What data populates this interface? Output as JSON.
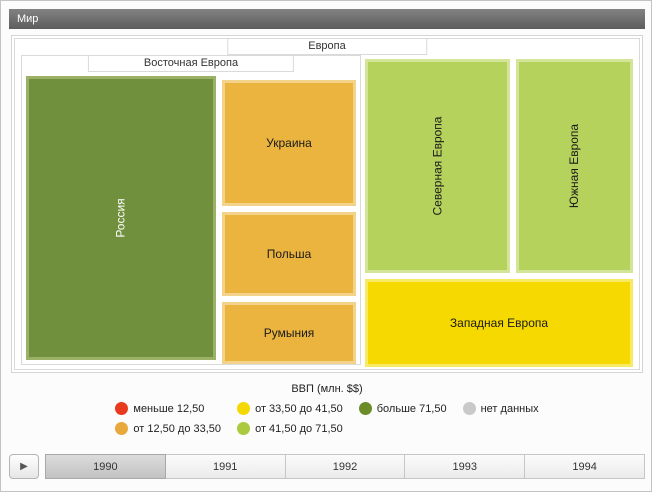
{
  "window": {
    "title": "Мир"
  },
  "treemap": {
    "root": {
      "label": "Европа"
    },
    "eastern_group": {
      "label": "Восточная Европа"
    },
    "cells": {
      "russia": {
        "label": "Россия",
        "color": "#70903e",
        "border_color": "#9cb168",
        "text_color": "#ffffff"
      },
      "ukraine": {
        "label": "Украина",
        "color": "#eab43f",
        "border_color": "#f3d289",
        "text_color": "#1a1a1a"
      },
      "poland": {
        "label": "Польша",
        "color": "#eab43f",
        "border_color": "#f3d289",
        "text_color": "#1a1a1a"
      },
      "romania": {
        "label": "Румыния",
        "color": "#eab43f",
        "border_color": "#f3d289",
        "text_color": "#1a1a1a"
      },
      "northern": {
        "label": "Северная Европа",
        "color": "#b5d35c",
        "border_color": "#d4e59a",
        "text_color": "#1a1a1a"
      },
      "southern": {
        "label": "Южная Европа",
        "color": "#b5d35c",
        "border_color": "#d4e59a",
        "text_color": "#1a1a1a"
      },
      "western": {
        "label": "Западная Европа",
        "color": "#f5d900",
        "border_color": "#f9ea66",
        "text_color": "#1a1a1a"
      }
    }
  },
  "legend": {
    "title": "ВВП (млн. $$)",
    "items": [
      {
        "label": "меньше 12,50",
        "color": "#e83a1e"
      },
      {
        "label": "от 12,50 до 33,50",
        "color": "#e9a83c"
      },
      {
        "label": "от 33,50 до 41,50",
        "color": "#f4d803"
      },
      {
        "label": "от 41,50 до 71,50",
        "color": "#abca40"
      },
      {
        "label": "больше 71,50",
        "color": "#6b8c28"
      },
      {
        "label": "нет данных",
        "color": "#c9c9c9"
      }
    ]
  },
  "timeline": {
    "play_label": "▶",
    "years": [
      {
        "label": "1990",
        "selected": true
      },
      {
        "label": "1991",
        "selected": false
      },
      {
        "label": "1992",
        "selected": false
      },
      {
        "label": "1993",
        "selected": false
      },
      {
        "label": "1994",
        "selected": false
      }
    ]
  },
  "chart_data": {
    "type": "treemap",
    "title": "ВВП (млн. $$)",
    "root": "Мир",
    "year": "1990",
    "legend_bins": [
      {
        "label": "меньше 12,50",
        "color": "#e83a1e"
      },
      {
        "label": "от 12,50 до 33,50",
        "color": "#e9a83c"
      },
      {
        "label": "от 33,50 до 41,50",
        "color": "#f4d803"
      },
      {
        "label": "от 41,50 до 71,50",
        "color": "#abca40"
      },
      {
        "label": "больше 71,50",
        "color": "#6b8c28"
      },
      {
        "label": "нет данных",
        "color": "#c9c9c9"
      }
    ],
    "hierarchy": [
      {
        "region": "Европа",
        "children": [
          {
            "region": "Восточная Европа",
            "children": [
              {
                "name": "Россия",
                "gdp_bin": "больше 71,50"
              },
              {
                "name": "Украина",
                "gdp_bin": "от 12,50 до 33,50"
              },
              {
                "name": "Польша",
                "gdp_bin": "от 12,50 до 33,50"
              },
              {
                "name": "Румыния",
                "gdp_bin": "от 12,50 до 33,50"
              }
            ]
          },
          {
            "name": "Северная Европа",
            "gdp_bin": "от 41,50 до 71,50"
          },
          {
            "name": "Южная Европа",
            "gdp_bin": "от 41,50 до 71,50"
          },
          {
            "name": "Западная Европа",
            "gdp_bin": "от 33,50 до 41,50"
          }
        ]
      }
    ]
  }
}
